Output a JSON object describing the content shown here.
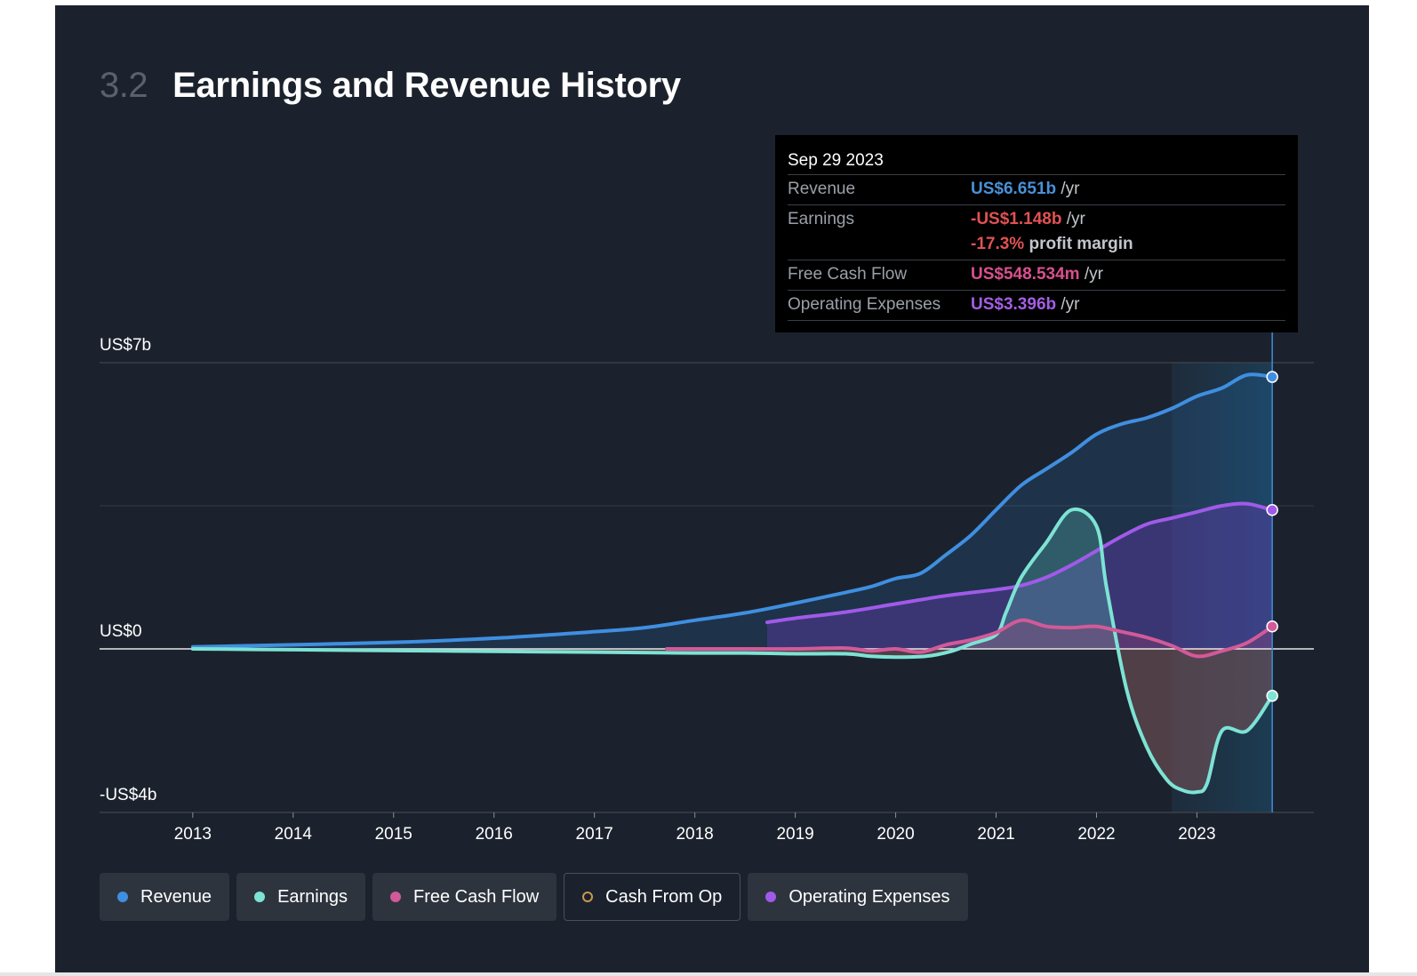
{
  "section": {
    "number": "3.2",
    "title": "Earnings and Revenue History"
  },
  "tooltip": {
    "date": "Sep 29 2023",
    "rows": [
      {
        "label": "Revenue",
        "value": "US$6.651b",
        "unit": "/yr",
        "color": "#4a90d9"
      },
      {
        "label": "Earnings",
        "value": "-US$1.148b",
        "unit": "/yr",
        "color": "#e05252",
        "extra_value": "-17.3%",
        "extra_text": "profit margin"
      },
      {
        "label": "Free Cash Flow",
        "value": "US$548.534m",
        "unit": "/yr",
        "color": "#d9508e"
      },
      {
        "label": "Operating Expenses",
        "value": "US$3.396b",
        "unit": "/yr",
        "color": "#a45ee6"
      }
    ]
  },
  "legend": [
    {
      "label": "Revenue",
      "color": "#3f8fe0",
      "style": "filled"
    },
    {
      "label": "Earnings",
      "color": "#7de3d4",
      "style": "filled"
    },
    {
      "label": "Free Cash Flow",
      "color": "#d25a98",
      "style": "filled"
    },
    {
      "label": "Cash From Op",
      "color": "#c89a4e",
      "style": "hollow"
    },
    {
      "label": "Operating Expenses",
      "color": "#a05ae8",
      "style": "filled"
    }
  ],
  "chart_data": {
    "type": "line",
    "title": "Earnings and Revenue History",
    "y_labels": [
      "US$7b",
      "US$0",
      "-US$4b"
    ],
    "ylim": [
      -4,
      7
    ],
    "xlim": [
      2012.55,
      2024.2
    ],
    "x_ticks": [
      "2013",
      "2014",
      "2015",
      "2016",
      "2017",
      "2018",
      "2019",
      "2020",
      "2021",
      "2022",
      "2023"
    ],
    "highlight_range": [
      2022.75,
      2023.75
    ],
    "cursor_x": 2023.75,
    "series": [
      {
        "name": "Revenue",
        "color": "#3f8fe0",
        "x": [
          2013,
          2014,
          2015,
          2016,
          2017,
          2017.5,
          2018,
          2018.5,
          2019,
          2019.5,
          2019.75,
          2020,
          2020.25,
          2020.5,
          2020.75,
          2021,
          2021.25,
          2021.5,
          2021.75,
          2022,
          2022.25,
          2022.5,
          2022.75,
          2023,
          2023.25,
          2023.5,
          2023.75
        ],
        "y": [
          0.05,
          0.1,
          0.16,
          0.26,
          0.42,
          0.52,
          0.7,
          0.88,
          1.12,
          1.38,
          1.52,
          1.72,
          1.85,
          2.3,
          2.78,
          3.4,
          4.0,
          4.4,
          4.8,
          5.25,
          5.5,
          5.65,
          5.88,
          6.18,
          6.38,
          6.7,
          6.651
        ]
      },
      {
        "name": "Earnings",
        "color": "#7de3d4",
        "x": [
          2013,
          2014,
          2015,
          2016,
          2017,
          2018,
          2018.5,
          2019,
          2019.5,
          2019.75,
          2020,
          2020.3,
          2020.55,
          2020.75,
          2021.0,
          2021.1,
          2021.25,
          2021.5,
          2021.75,
          2022.0,
          2022.1,
          2022.3,
          2022.5,
          2022.7,
          2022.85,
          2023.0,
          2023.1,
          2023.25,
          2023.5,
          2023.75
        ],
        "y": [
          0.0,
          -0.02,
          -0.04,
          -0.06,
          -0.08,
          -0.1,
          -0.1,
          -0.12,
          -0.12,
          -0.18,
          -0.2,
          -0.18,
          -0.06,
          0.12,
          0.35,
          0.9,
          1.75,
          2.6,
          3.4,
          3.0,
          1.5,
          -1.0,
          -2.4,
          -3.2,
          -3.45,
          -3.5,
          -3.3,
          -2.0,
          -2.0,
          -1.148
        ]
      },
      {
        "name": "Free Cash Flow",
        "color": "#d25a98",
        "x": [
          2017.72,
          2018,
          2018.5,
          2019,
          2019.5,
          2019.75,
          2020,
          2020.25,
          2020.5,
          2020.75,
          2021.0,
          2021.25,
          2021.5,
          2021.75,
          2022.0,
          2022.25,
          2022.5,
          2022.75,
          2023.0,
          2023.25,
          2023.5,
          2023.75
        ],
        "y": [
          0.0,
          0.0,
          0.0,
          0.0,
          0.02,
          -0.05,
          0.0,
          -0.08,
          0.1,
          0.22,
          0.4,
          0.7,
          0.55,
          0.52,
          0.55,
          0.42,
          0.28,
          0.08,
          -0.18,
          -0.05,
          0.15,
          0.548534
        ]
      },
      {
        "name": "Operating Expenses",
        "color": "#a05ae8",
        "x": [
          2018.72,
          2019,
          2019.5,
          2020,
          2020.5,
          2021.0,
          2021.25,
          2021.5,
          2021.75,
          2022.0,
          2022.25,
          2022.5,
          2022.75,
          2023.0,
          2023.25,
          2023.5,
          2023.75
        ],
        "y": [
          0.65,
          0.75,
          0.9,
          1.1,
          1.3,
          1.45,
          1.55,
          1.75,
          2.05,
          2.4,
          2.75,
          3.05,
          3.2,
          3.35,
          3.5,
          3.55,
          3.396
        ]
      }
    ]
  }
}
